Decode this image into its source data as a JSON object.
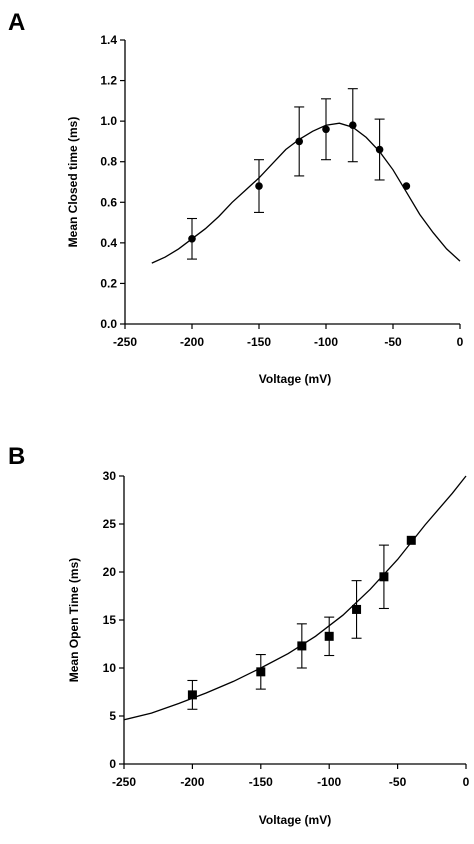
{
  "chart_data": [
    {
      "type": "scatter",
      "panel_label": "A",
      "xlabel": "Voltage (mV)",
      "ylabel": "Mean Closed time (ms)",
      "xlim": [
        -250,
        0
      ],
      "ylim": [
        0.0,
        1.4
      ],
      "xticks": [
        -250,
        -200,
        -150,
        -100,
        -50,
        0
      ],
      "xtick_labels": [
        "-250",
        "-200",
        "-150",
        "-100",
        "-50",
        "0"
      ],
      "yticks": [
        0.0,
        0.2,
        0.4,
        0.6,
        0.8,
        1.0,
        1.2,
        1.4
      ],
      "ytick_labels": [
        "0.0",
        "0.2",
        "0.4",
        "0.6",
        "0.8",
        "1.0",
        "1.2",
        "1.4"
      ],
      "grid": false,
      "marker": "circle",
      "series": [
        {
          "x": [
            -200,
            -150,
            -120,
            -100,
            -80,
            -60,
            -40
          ],
          "y": [
            0.42,
            0.68,
            0.9,
            0.96,
            0.98,
            0.86,
            0.68
          ],
          "err": [
            0.1,
            0.13,
            0.17,
            0.15,
            0.18,
            0.15,
            0.0
          ]
        }
      ],
      "fit_curve": {
        "x": [
          -230,
          -220,
          -210,
          -200,
          -190,
          -180,
          -170,
          -160,
          -150,
          -140,
          -130,
          -120,
          -110,
          -100,
          -90,
          -80,
          -70,
          -60,
          -50,
          -40,
          -30,
          -20,
          -10,
          0
        ],
        "y": [
          0.3,
          0.33,
          0.37,
          0.42,
          0.47,
          0.53,
          0.6,
          0.66,
          0.72,
          0.79,
          0.86,
          0.91,
          0.95,
          0.98,
          0.99,
          0.97,
          0.92,
          0.85,
          0.76,
          0.65,
          0.54,
          0.45,
          0.37,
          0.31
        ]
      }
    },
    {
      "type": "scatter",
      "panel_label": "B",
      "xlabel": "Voltage (mV)",
      "ylabel": "Mean Open Time (ms)",
      "xlim": [
        -250,
        0
      ],
      "ylim": [
        0,
        30
      ],
      "xticks": [
        -250,
        -200,
        -150,
        -100,
        -50,
        0
      ],
      "xtick_labels": [
        "-250",
        "-200",
        "-150",
        "-100",
        "-50",
        "0"
      ],
      "yticks": [
        0,
        5,
        10,
        15,
        20,
        25,
        30
      ],
      "ytick_labels": [
        "0",
        "5",
        "10",
        "15",
        "20",
        "25",
        "30"
      ],
      "grid": false,
      "marker": "square",
      "series": [
        {
          "x": [
            -200,
            -150,
            -120,
            -100,
            -80,
            -60,
            -40
          ],
          "y": [
            7.2,
            9.6,
            12.3,
            13.3,
            16.1,
            19.5,
            23.3
          ],
          "err": [
            1.5,
            1.8,
            2.3,
            2.0,
            3.0,
            3.3,
            0.0
          ]
        }
      ],
      "fit_curve": {
        "x": [
          -250,
          -230,
          -210,
          -190,
          -170,
          -150,
          -130,
          -110,
          -90,
          -70,
          -50,
          -30,
          -10,
          0
        ],
        "y": [
          4.6,
          5.3,
          6.3,
          7.4,
          8.6,
          10.0,
          11.5,
          13.3,
          15.5,
          18.2,
          21.3,
          24.9,
          28.2,
          30.0
        ]
      }
    }
  ]
}
